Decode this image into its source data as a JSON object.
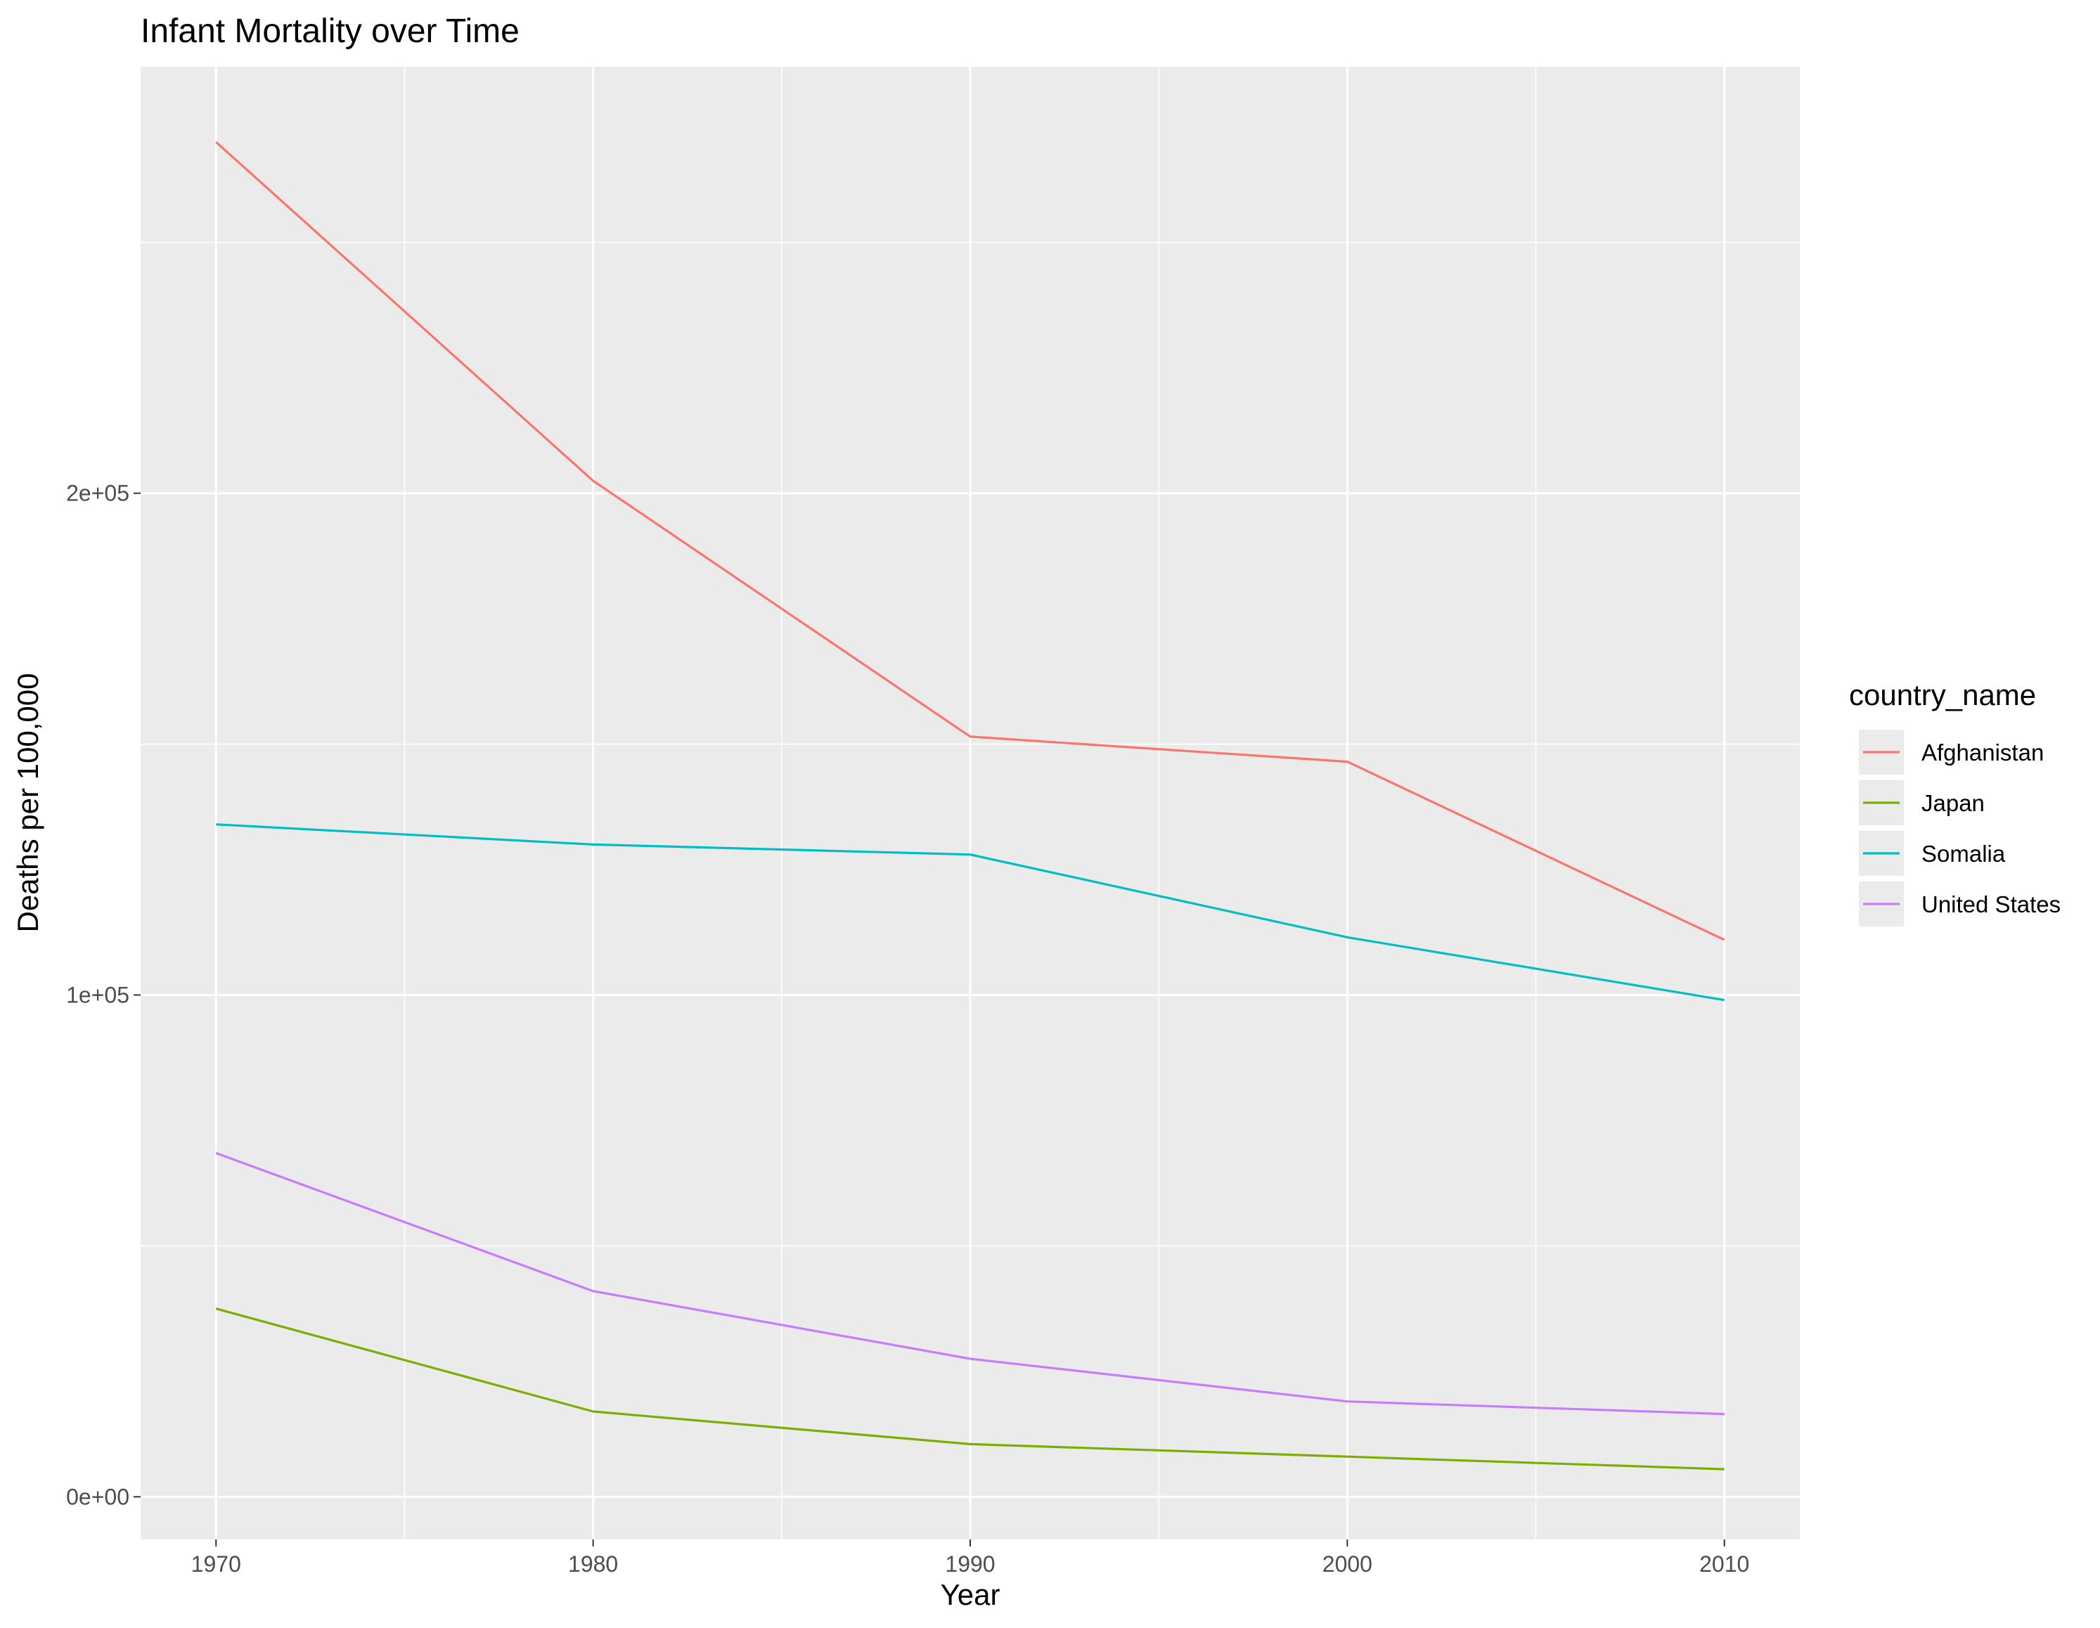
{
  "chart_data": {
    "type": "line",
    "title": "Infant Mortality over Time",
    "xlabel": "Year",
    "ylabel": "Deaths per 100,000",
    "x": [
      1970,
      1980,
      1990,
      2000,
      2010
    ],
    "xlim": [
      1968,
      2012
    ],
    "ylim": [
      -8500,
      285000
    ],
    "x_ticks": [
      1970,
      1980,
      1990,
      2000,
      2010
    ],
    "x_tick_labels": [
      "1970",
      "1980",
      "1990",
      "2000",
      "2010"
    ],
    "y_ticks": [
      0,
      100000,
      200000
    ],
    "y_tick_labels": [
      "0e+00",
      "1e+05",
      "2e+05"
    ],
    "grid": true,
    "legend_title": "country_name",
    "legend_position": "right",
    "series": [
      {
        "name": "Afghanistan",
        "color": "#F8766D",
        "values": [
          270000,
          202500,
          151500,
          146500,
          111000
        ]
      },
      {
        "name": "Japan",
        "color": "#7CAE00",
        "values": [
          37500,
          17000,
          10500,
          8000,
          5500
        ]
      },
      {
        "name": "Somalia",
        "color": "#00BFC4",
        "values": [
          134000,
          130000,
          128000,
          111500,
          99000
        ]
      },
      {
        "name": "United States",
        "color": "#C77CFF",
        "values": [
          68500,
          41000,
          27500,
          19000,
          16500
        ]
      }
    ],
    "colors": {
      "panel_background": "#EBEBEB",
      "grid": "#FFFFFF",
      "tick": "#333333"
    }
  }
}
